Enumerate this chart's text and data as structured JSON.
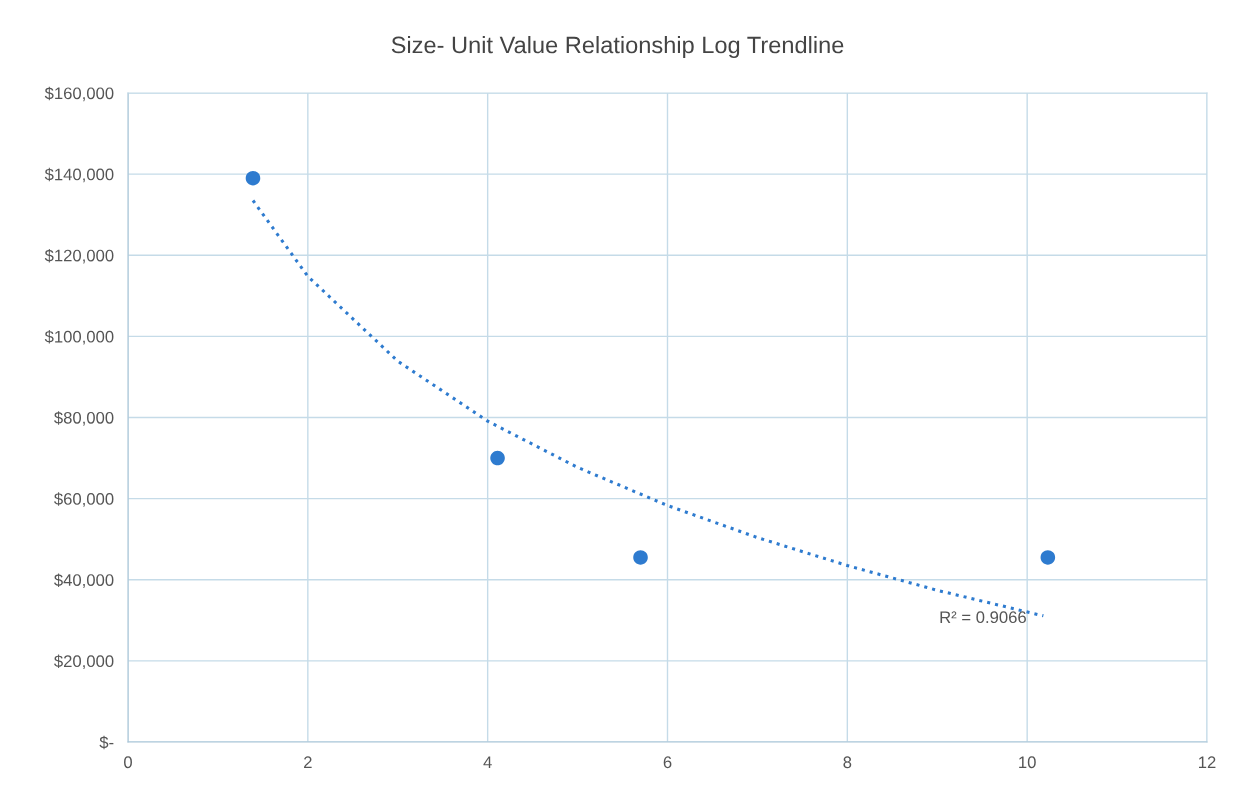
{
  "chart_data": {
    "type": "scatter",
    "title": "Size- Unit Value Relationship Log Trendline",
    "xlim": [
      0,
      12
    ],
    "xticks": [
      0,
      2,
      4,
      6,
      8,
      10,
      12
    ],
    "ylim": [
      0,
      160000
    ],
    "yticks": [
      {
        "value": 0,
        "label": "$-"
      },
      {
        "value": 20000,
        "label": "$20,000"
      },
      {
        "value": 40000,
        "label": "$40,000"
      },
      {
        "value": 60000,
        "label": "$60,000"
      },
      {
        "value": 80000,
        "label": "$80,000"
      },
      {
        "value": 100000,
        "label": "$100,000"
      },
      {
        "value": 120000,
        "label": "$120,000"
      },
      {
        "value": 140000,
        "label": "$140,000"
      },
      {
        "value": 160000,
        "label": "$160,000"
      }
    ],
    "grid": true,
    "marker": "circle",
    "legend": false,
    "series": [
      {
        "color": "#2e7bcf",
        "x": [
          1.39,
          4.11,
          5.7,
          10.23
        ],
        "values": [
          139000,
          70000,
          45500,
          45500
        ]
      },
      {
        "type": "line",
        "color": "#2e7bcf",
        "line_style": "dotted",
        "marker": "none",
        "x": [
          1.39,
          2,
          3,
          4,
          5,
          6,
          7,
          8,
          9,
          10.18
        ],
        "values": [
          133500,
          114800,
          93900,
          79100,
          67700,
          58300,
          50400,
          43500,
          37400,
          31100
        ]
      }
    ],
    "annotations": [
      "R² = 0.9066"
    ]
  }
}
